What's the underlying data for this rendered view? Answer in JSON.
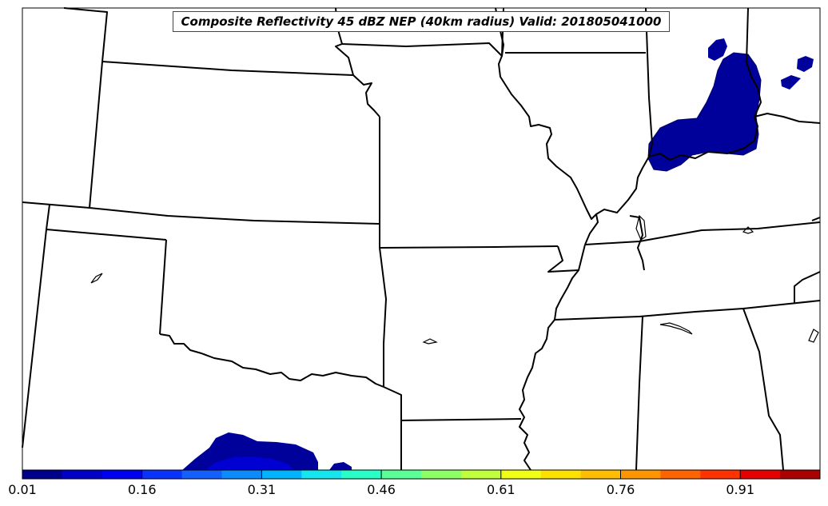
{
  "title": "Composite Reflectivity 45 dBZ NEP (40km radius) Valid: 201805041000",
  "colorbar": {
    "ticks": [
      "0.01",
      "0.16",
      "0.31",
      "0.46",
      "0.61",
      "0.76",
      "0.91"
    ],
    "colors": [
      "#00008c",
      "#0000c8",
      "#0000f0",
      "#0a32ff",
      "#1460ff",
      "#0a8cff",
      "#00b4ff",
      "#14e6f0",
      "#28ffc8",
      "#5aff96",
      "#8cff64",
      "#c0ff3c",
      "#f0ff14",
      "#ffe100",
      "#ffbe00",
      "#ff9600",
      "#ff6400",
      "#ff3200",
      "#e60000",
      "#aa0000"
    ]
  },
  "fill_colors": {
    "dark": "#00009a",
    "mid": "#0000d2",
    "light": "#0010e6"
  }
}
